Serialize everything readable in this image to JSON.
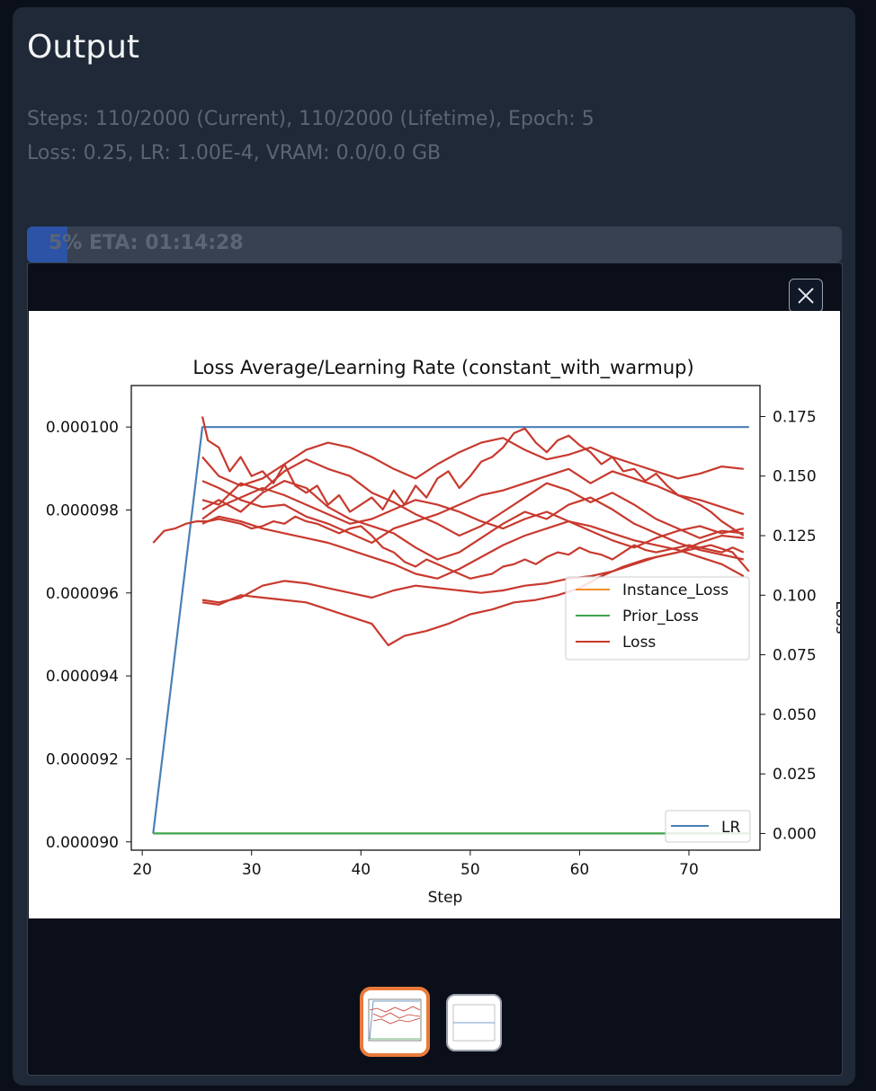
{
  "output": {
    "title": "Output",
    "status_line1": "Steps: 110/2000 (Current), 110/2000 (Lifetime), Epoch: 5",
    "status_line2": "Loss: 0.25, LR: 1.00E-4, VRAM: 0.0/0.0 GB"
  },
  "progress": {
    "percent": 5,
    "text": "5% ETA: 01:14:28"
  },
  "colors": {
    "accent": "#ea7a3a",
    "progress": "#2563eb"
  },
  "gallery": {
    "close_icon": "close-icon",
    "selected_thumbnail": 0
  },
  "chart_data": {
    "type": "line",
    "title": "Loss Average/Learning Rate (constant_with_warmup)",
    "xlabel": "Step",
    "ylabel_right": "Loss",
    "xlim": [
      19,
      76.5
    ],
    "ylim_left": [
      8.98e-05,
      0.000101
    ],
    "ylim_right": [
      -0.007,
      0.188
    ],
    "xticks": [
      20,
      30,
      40,
      50,
      60,
      70
    ],
    "yticks_left": [
      "0.000090",
      "0.000092",
      "0.000094",
      "0.000096",
      "0.000098",
      "0.000100"
    ],
    "yticks_left_values": [
      9e-05,
      9.2e-05,
      9.4e-05,
      9.6e-05,
      9.8e-05,
      0.0001
    ],
    "yticks_right": [
      "0.000",
      "0.025",
      "0.050",
      "0.075",
      "0.100",
      "0.125",
      "0.150",
      "0.175"
    ],
    "yticks_right_values": [
      0,
      0.025,
      0.05,
      0.075,
      0.1,
      0.125,
      0.15,
      0.175
    ],
    "legend_right_axis": [
      "Instance_Loss",
      "Prior_Loss",
      "Loss"
    ],
    "legend_right_axis_placement": "center-right",
    "legend_left_axis": [
      "LR"
    ],
    "legend_left_axis_placement": "lower-right",
    "series": [
      {
        "name": "LR",
        "axis": "left",
        "color": "#4a7fb5",
        "x": [
          21,
          25.5,
          75.5
        ],
        "y": [
          9.02e-05,
          0.0001,
          0.0001
        ]
      },
      {
        "name": "Instance_Loss",
        "axis": "right",
        "color": "#f28e2b",
        "x": [],
        "y": []
      },
      {
        "name": "Prior_Loss",
        "axis": "right",
        "color": "#3fa34d",
        "x": [
          21,
          75.5
        ],
        "y": [
          0,
          0
        ]
      },
      {
        "name": "Loss",
        "axis": "right",
        "color": "#c8392e",
        "traces": [
          {
            "x": [
              21,
              22,
              23,
              24,
              25,
              26,
              27,
              28,
              29,
              30,
              31,
              32,
              33,
              34,
              35,
              36,
              37,
              38,
              39,
              40,
              41,
              42,
              43,
              44,
              45,
              46,
              47,
              48,
              49,
              50,
              51,
              52,
              53,
              54,
              55,
              56,
              57,
              58,
              59,
              60,
              61,
              62,
              63,
              64,
              65,
              66,
              67,
              68,
              69,
              70,
              71,
              72,
              73,
              74,
              75
            ],
            "y": [
              0.122,
              0.127,
              0.128,
              0.13,
              0.131,
              0.131,
              0.132,
              0.131,
              0.13,
              0.128,
              0.129,
              0.131,
              0.13,
              0.133,
              0.131,
              0.13,
              0.128,
              0.126,
              0.128,
              0.129,
              0.125,
              0.12,
              0.118,
              0.114,
              0.112,
              0.115,
              0.113,
              0.111,
              0.109,
              0.107,
              0.108,
              0.109,
              0.112,
              0.113,
              0.115,
              0.113,
              0.116,
              0.118,
              0.117,
              0.12,
              0.118,
              0.117,
              0.115,
              0.118,
              0.121,
              0.119,
              0.118,
              0.119,
              0.12,
              0.121,
              0.12,
              0.119,
              0.118,
              0.12,
              0.118
            ]
          },
          {
            "x": [
              25.5,
              26,
              27,
              28,
              29,
              30,
              31,
              32,
              33,
              34,
              35,
              36,
              37,
              38,
              39,
              40,
              41,
              42,
              43,
              44,
              45,
              46,
              47,
              48,
              49,
              50,
              51,
              52,
              53,
              54,
              55,
              56,
              57,
              58,
              59,
              60,
              61,
              62,
              63,
              64,
              65,
              66,
              67,
              68,
              69,
              70,
              71,
              72,
              73,
              74,
              75
            ],
            "y": [
              0.175,
              0.165,
              0.162,
              0.152,
              0.158,
              0.15,
              0.152,
              0.147,
              0.155,
              0.146,
              0.143,
              0.146,
              0.138,
              0.142,
              0.135,
              0.138,
              0.141,
              0.136,
              0.144,
              0.138,
              0.146,
              0.141,
              0.149,
              0.152,
              0.145,
              0.15,
              0.156,
              0.158,
              0.162,
              0.168,
              0.17,
              0.164,
              0.16,
              0.165,
              0.167,
              0.163,
              0.16,
              0.155,
              0.158,
              0.152,
              0.153,
              0.148,
              0.151,
              0.146,
              0.142,
              0.14,
              0.138,
              0.135,
              0.131,
              0.128,
              0.125
            ]
          },
          {
            "x": [
              25.5,
              27,
              29,
              31,
              33,
              35,
              37,
              39,
              41,
              43,
              45,
              47,
              49,
              51,
              53,
              55,
              57,
              59,
              61,
              63,
              65,
              67,
              69,
              71,
              73,
              75
            ],
            "y": [
              0.148,
              0.145,
              0.14,
              0.137,
              0.138,
              0.133,
              0.13,
              0.126,
              0.122,
              0.128,
              0.131,
              0.134,
              0.138,
              0.142,
              0.144,
              0.147,
              0.15,
              0.153,
              0.147,
              0.152,
              0.149,
              0.146,
              0.142,
              0.14,
              0.137,
              0.134
            ]
          },
          {
            "x": [
              25.5,
              27,
              29,
              31,
              33,
              35,
              37,
              39,
              41,
              43,
              45,
              47,
              49,
              51,
              53,
              55,
              57,
              59,
              61,
              63,
              65,
              67,
              69,
              71,
              73,
              75
            ],
            "y": [
              0.136,
              0.14,
              0.135,
              0.143,
              0.148,
              0.145,
              0.137,
              0.132,
              0.129,
              0.126,
              0.12,
              0.115,
              0.118,
              0.124,
              0.13,
              0.135,
              0.132,
              0.138,
              0.141,
              0.136,
              0.13,
              0.126,
              0.122,
              0.119,
              0.117,
              0.115
            ]
          },
          {
            "x": [
              25.5,
              27,
              29,
              31,
              33,
              35,
              37,
              39,
              41,
              43,
              45,
              47,
              49,
              51,
              53,
              55,
              57,
              59,
              61,
              63,
              65,
              67,
              69,
              71,
              73,
              75
            ],
            "y": [
              0.098,
              0.097,
              0.099,
              0.104,
              0.106,
              0.105,
              0.103,
              0.101,
              0.099,
              0.102,
              0.104,
              0.103,
              0.102,
              0.101,
              0.102,
              0.104,
              0.105,
              0.107,
              0.108,
              0.11,
              0.113,
              0.116,
              0.118,
              0.122,
              0.125,
              0.124
            ]
          },
          {
            "x": [
              25.5,
              27,
              29,
              31,
              33,
              35,
              37,
              39,
              41,
              42.5,
              44,
              46,
              48,
              50,
              52,
              54,
              56,
              58,
              60,
              62,
              64,
              66,
              68,
              70,
              72,
              74,
              75.5
            ],
            "y": [
              0.097,
              0.096,
              0.1,
              0.099,
              0.098,
              0.097,
              0.094,
              0.091,
              0.088,
              0.079,
              0.083,
              0.085,
              0.088,
              0.092,
              0.094,
              0.097,
              0.098,
              0.1,
              0.103,
              0.108,
              0.112,
              0.115,
              0.117,
              0.119,
              0.121,
              0.118,
              0.11
            ]
          },
          {
            "x": [
              25.5,
              27,
              29,
              31,
              33,
              35,
              37,
              39,
              41,
              43,
              45,
              47,
              49,
              51,
              53,
              55,
              57,
              59,
              61,
              63,
              65,
              67,
              69,
              71,
              73,
              75
            ],
            "y": [
              0.14,
              0.138,
              0.147,
              0.144,
              0.152,
              0.157,
              0.153,
              0.15,
              0.143,
              0.139,
              0.134,
              0.13,
              0.125,
              0.129,
              0.135,
              0.141,
              0.147,
              0.144,
              0.139,
              0.143,
              0.138,
              0.132,
              0.128,
              0.124,
              0.127,
              0.126
            ]
          },
          {
            "x": [
              25.5,
              27,
              29,
              31,
              33,
              35,
              37,
              39,
              41,
              43,
              45,
              47,
              49,
              51,
              53,
              55,
              57,
              59,
              61,
              63,
              65,
              67,
              69,
              71,
              73,
              75
            ],
            "y": [
              0.13,
              0.133,
              0.131,
              0.128,
              0.126,
              0.124,
              0.122,
              0.119,
              0.116,
              0.113,
              0.109,
              0.107,
              0.111,
              0.116,
              0.121,
              0.125,
              0.128,
              0.131,
              0.129,
              0.126,
              0.123,
              0.121,
              0.119,
              0.116,
              0.113,
              0.108
            ]
          },
          {
            "x": [
              25.5,
              27,
              29,
              31,
              33,
              35,
              37,
              39,
              41,
              43,
              45,
              47,
              49,
              51,
              53,
              55,
              57,
              59,
              61,
              63,
              65,
              67,
              69,
              71,
              73,
              75
            ],
            "y": [
              0.158,
              0.15,
              0.146,
              0.149,
              0.155,
              0.161,
              0.164,
              0.162,
              0.158,
              0.153,
              0.149,
              0.155,
              0.16,
              0.164,
              0.166,
              0.161,
              0.157,
              0.159,
              0.162,
              0.158,
              0.155,
              0.152,
              0.149,
              0.151,
              0.154,
              0.153
            ]
          },
          {
            "x": [
              25.5,
              27,
              29,
              31,
              33,
              35,
              37,
              39,
              41,
              43,
              45,
              47,
              49,
              51,
              53,
              55,
              57,
              59,
              61,
              63,
              65,
              67,
              69,
              71,
              73,
              75
            ],
            "y": [
              0.132,
              0.137,
              0.141,
              0.145,
              0.142,
              0.138,
              0.134,
              0.13,
              0.132,
              0.136,
              0.14,
              0.138,
              0.135,
              0.131,
              0.128,
              0.132,
              0.135,
              0.131,
              0.127,
              0.123,
              0.12,
              0.124,
              0.127,
              0.129,
              0.126,
              0.128
            ]
          }
        ]
      }
    ]
  }
}
